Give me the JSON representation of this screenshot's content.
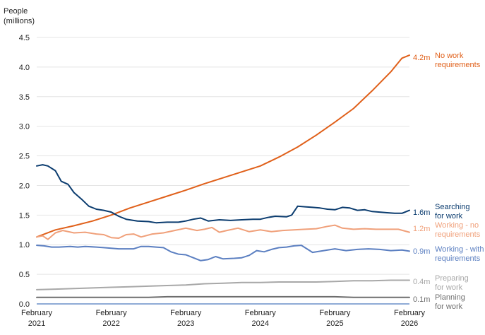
{
  "chart_data": {
    "type": "line",
    "ylabel": [
      "People",
      "(millions)"
    ],
    "ylim": [
      0,
      4.5
    ],
    "yticks": [
      "0.0",
      "0.5",
      "1.0",
      "1.5",
      "2.0",
      "2.5",
      "3.0",
      "3.5",
      "4.0",
      "4.5"
    ],
    "xlim": [
      2021.0,
      2026.0
    ],
    "xticks": [
      {
        "x": 2021,
        "line1": "February",
        "line2": "2021"
      },
      {
        "x": 2022,
        "line1": "February",
        "line2": "2022"
      },
      {
        "x": 2023,
        "line1": "February",
        "line2": "2023"
      },
      {
        "x": 2024,
        "line1": "February",
        "line2": "2024"
      },
      {
        "x": 2025,
        "line1": "February",
        "line2": "2025"
      },
      {
        "x": 2026,
        "line1": "February",
        "line2": "2026"
      }
    ],
    "grid": true,
    "series": [
      {
        "name": "No work requirements",
        "label_lines": [
          "No work",
          "requirements"
        ],
        "end_value": "4.2m",
        "color": "#e0601a",
        "x": [
          2021.0,
          2021.25,
          2021.5,
          2021.75,
          2022.0,
          2022.25,
          2022.5,
          2022.75,
          2023.0,
          2023.25,
          2023.5,
          2023.75,
          2024.0,
          2024.25,
          2024.5,
          2024.75,
          2025.0,
          2025.25,
          2025.5,
          2025.75,
          2025.9,
          2026.0
        ],
        "y": [
          1.13,
          1.25,
          1.32,
          1.4,
          1.5,
          1.62,
          1.72,
          1.82,
          1.92,
          2.03,
          2.13,
          2.23,
          2.33,
          2.48,
          2.65,
          2.85,
          3.07,
          3.3,
          3.6,
          3.92,
          4.15,
          4.2
        ]
      },
      {
        "name": "Searching for work",
        "label_lines": [
          "Searching",
          "for work"
        ],
        "end_value": "1.6m",
        "color": "#0b3c6f",
        "x": [
          2021.0,
          2021.08,
          2021.15,
          2021.25,
          2021.33,
          2021.42,
          2021.5,
          2021.6,
          2021.7,
          2021.8,
          2021.9,
          2022.0,
          2022.1,
          2022.2,
          2022.35,
          2022.5,
          2022.6,
          2022.75,
          2022.9,
          2023.0,
          2023.1,
          2023.2,
          2023.3,
          2023.45,
          2023.6,
          2023.75,
          2023.9,
          2024.0,
          2024.1,
          2024.2,
          2024.35,
          2024.42,
          2024.5,
          2024.6,
          2024.7,
          2024.8,
          2024.9,
          2025.0,
          2025.1,
          2025.2,
          2025.3,
          2025.4,
          2025.5,
          2025.6,
          2025.7,
          2025.8,
          2025.9,
          2026.0
        ],
        "y": [
          2.33,
          2.35,
          2.33,
          2.25,
          2.07,
          2.02,
          1.88,
          1.77,
          1.65,
          1.6,
          1.58,
          1.55,
          1.48,
          1.43,
          1.4,
          1.39,
          1.37,
          1.38,
          1.38,
          1.4,
          1.43,
          1.45,
          1.4,
          1.42,
          1.41,
          1.42,
          1.43,
          1.43,
          1.46,
          1.48,
          1.47,
          1.5,
          1.65,
          1.64,
          1.63,
          1.62,
          1.6,
          1.59,
          1.63,
          1.62,
          1.58,
          1.59,
          1.56,
          1.55,
          1.54,
          1.53,
          1.53,
          1.58
        ]
      },
      {
        "name": "Working - no requirements",
        "label_lines": [
          "Working - no",
          "requirements"
        ],
        "end_value": "1.2m",
        "color": "#f0a07a",
        "x": [
          2021.0,
          2021.08,
          2021.15,
          2021.25,
          2021.35,
          2021.5,
          2021.65,
          2021.8,
          2021.9,
          2022.0,
          2022.1,
          2022.2,
          2022.3,
          2022.4,
          2022.55,
          2022.7,
          2022.85,
          2023.0,
          2023.15,
          2023.25,
          2023.35,
          2023.45,
          2023.55,
          2023.7,
          2023.85,
          2024.0,
          2024.15,
          2024.3,
          2024.45,
          2024.6,
          2024.75,
          2024.9,
          2025.0,
          2025.1,
          2025.25,
          2025.4,
          2025.55,
          2025.7,
          2025.85,
          2026.0
        ],
        "y": [
          1.13,
          1.15,
          1.09,
          1.2,
          1.24,
          1.2,
          1.21,
          1.18,
          1.17,
          1.12,
          1.11,
          1.17,
          1.18,
          1.13,
          1.18,
          1.2,
          1.24,
          1.28,
          1.24,
          1.26,
          1.29,
          1.21,
          1.24,
          1.28,
          1.22,
          1.25,
          1.22,
          1.24,
          1.25,
          1.26,
          1.27,
          1.31,
          1.33,
          1.28,
          1.26,
          1.27,
          1.26,
          1.26,
          1.26,
          1.21
        ]
      },
      {
        "name": "Working - with requirements",
        "label_lines": [
          "Working - with",
          "requirements"
        ],
        "end_value": "0.9m",
        "color": "#5b7fc1",
        "x": [
          2021.0,
          2021.1,
          2021.2,
          2021.3,
          2021.45,
          2021.55,
          2021.65,
          2021.8,
          2021.9,
          2022.0,
          2022.1,
          2022.2,
          2022.3,
          2022.4,
          2022.5,
          2022.6,
          2022.7,
          2022.8,
          2022.9,
          2023.0,
          2023.1,
          2023.2,
          2023.3,
          2023.4,
          2023.5,
          2023.65,
          2023.75,
          2023.85,
          2023.95,
          2024.05,
          2024.15,
          2024.25,
          2024.35,
          2024.45,
          2024.55,
          2024.7,
          2024.85,
          2025.0,
          2025.15,
          2025.3,
          2025.45,
          2025.6,
          2025.75,
          2025.9,
          2026.0
        ],
        "y": [
          0.99,
          0.98,
          0.96,
          0.96,
          0.97,
          0.96,
          0.97,
          0.96,
          0.95,
          0.94,
          0.93,
          0.93,
          0.93,
          0.97,
          0.97,
          0.96,
          0.95,
          0.88,
          0.84,
          0.83,
          0.78,
          0.73,
          0.75,
          0.8,
          0.76,
          0.77,
          0.78,
          0.82,
          0.9,
          0.88,
          0.92,
          0.95,
          0.96,
          0.98,
          0.99,
          0.87,
          0.9,
          0.93,
          0.9,
          0.92,
          0.93,
          0.92,
          0.9,
          0.91,
          0.89
        ]
      },
      {
        "name": "Preparing for work",
        "label_lines": [
          "Preparing",
          "for work"
        ],
        "end_value": "0.4m",
        "color": "#a8a8a8",
        "x": [
          2021.0,
          2021.25,
          2021.5,
          2021.75,
          2022.0,
          2022.25,
          2022.5,
          2022.75,
          2023.0,
          2023.25,
          2023.5,
          2023.75,
          2024.0,
          2024.25,
          2024.5,
          2024.75,
          2025.0,
          2025.25,
          2025.5,
          2025.75,
          2026.0
        ],
        "y": [
          0.24,
          0.25,
          0.26,
          0.27,
          0.28,
          0.29,
          0.3,
          0.31,
          0.32,
          0.34,
          0.35,
          0.36,
          0.36,
          0.37,
          0.37,
          0.37,
          0.38,
          0.39,
          0.39,
          0.4,
          0.4
        ]
      },
      {
        "name": "Planning for work",
        "label_lines": [
          "Planning",
          "for work"
        ],
        "end_value": "0.1m",
        "color": "#6e6e6e",
        "x": [
          2021.0,
          2021.25,
          2021.5,
          2021.75,
          2022.0,
          2022.25,
          2022.5,
          2022.75,
          2023.0,
          2023.25,
          2023.5,
          2023.75,
          2024.0,
          2024.25,
          2024.5,
          2024.75,
          2025.0,
          2025.25,
          2025.5,
          2025.75,
          2026.0
        ],
        "y": [
          0.11,
          0.11,
          0.11,
          0.11,
          0.11,
          0.11,
          0.11,
          0.12,
          0.12,
          0.12,
          0.12,
          0.12,
          0.12,
          0.12,
          0.12,
          0.12,
          0.12,
          0.11,
          0.11,
          0.11,
          0.11
        ]
      }
    ]
  }
}
